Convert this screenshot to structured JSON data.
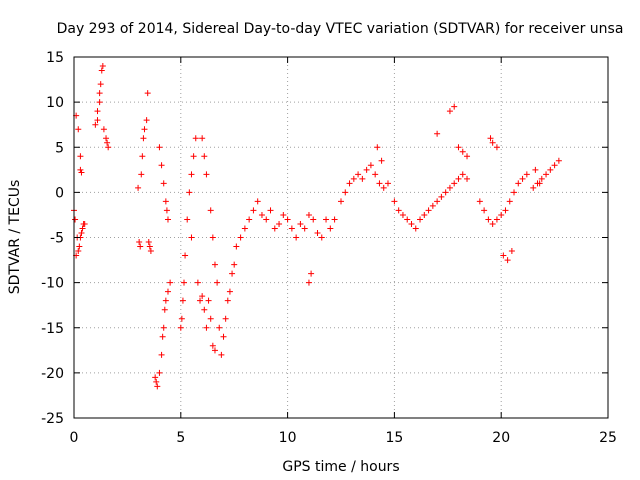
{
  "chart_data": {
    "type": "scatter",
    "title": "Day 293 of 2014, Sidereal Day-to-day VTEC variation (SDTVAR) for receiver unsa",
    "xlabel": "GPS time / hours",
    "ylabel": "SDTVAR / TECUs",
    "xlim": [
      0,
      25
    ],
    "ylim": [
      -25,
      15
    ],
    "xticks": [
      0,
      5,
      10,
      15,
      20,
      25
    ],
    "yticks": [
      -25,
      -20,
      -15,
      -10,
      -5,
      0,
      5,
      10,
      15
    ],
    "grid": true,
    "marker": "+",
    "color": "#ff0000",
    "series": [
      {
        "name": "SDTVAR",
        "x": [
          0.0,
          0.1,
          0.2,
          0.3,
          0.15,
          0.25,
          0.05,
          0.1,
          0.2,
          0.3,
          0.35,
          0.4,
          0.45,
          0.5,
          0.3,
          0.35,
          1.0,
          1.1,
          1.2,
          1.25,
          1.3,
          1.35,
          1.1,
          1.2,
          1.4,
          1.5,
          1.55,
          1.6,
          3.0,
          3.05,
          3.1,
          3.15,
          3.2,
          3.25,
          3.3,
          3.4,
          3.45,
          3.5,
          3.55,
          3.6,
          3.8,
          3.85,
          3.9,
          4.0,
          4.1,
          4.2,
          4.3,
          4.35,
          4.4,
          4.0,
          4.1,
          4.15,
          4.2,
          4.25,
          4.3,
          4.4,
          4.5,
          5.0,
          5.05,
          5.1,
          5.15,
          5.2,
          5.3,
          5.4,
          5.5,
          5.6,
          5.7,
          5.5,
          5.8,
          5.9,
          6.0,
          6.1,
          6.2,
          6.3,
          6.4,
          6.5,
          6.6,
          6.0,
          6.1,
          6.2,
          6.4,
          6.5,
          6.6,
          6.7,
          6.8,
          6.9,
          7.0,
          7.1,
          7.2,
          7.3,
          7.4,
          7.5,
          7.6,
          7.8,
          8.0,
          8.2,
          8.4,
          8.6,
          8.8,
          9.0,
          9.2,
          9.4,
          9.6,
          9.8,
          10.0,
          10.2,
          10.4,
          10.6,
          10.8,
          11.0,
          11.2,
          11.4,
          11.6,
          11.8,
          12.0,
          12.2,
          11.0,
          11.1,
          12.5,
          12.7,
          12.9,
          13.1,
          13.3,
          13.5,
          13.7,
          13.9,
          14.1,
          14.3,
          14.5,
          14.7,
          14.2,
          14.4,
          15.0,
          15.2,
          15.4,
          15.6,
          15.8,
          16.0,
          16.2,
          16.4,
          16.6,
          16.8,
          17.0,
          17.2,
          17.4,
          17.6,
          17.8,
          18.0,
          18.2,
          18.4,
          17.0,
          17.6,
          17.8,
          18.0,
          18.2,
          18.4,
          19.0,
          19.2,
          19.4,
          19.6,
          19.8,
          20.0,
          20.2,
          20.4,
          20.6,
          20.8,
          21.0,
          21.2,
          19.5,
          19.6,
          19.8,
          20.1,
          20.3,
          20.5,
          21.5,
          21.7,
          21.9,
          22.1,
          22.3,
          22.5,
          22.7,
          21.6,
          21.8
        ],
        "y": [
          -2,
          8.5,
          7,
          4,
          -5,
          -6,
          -3,
          -7,
          -6.5,
          -5,
          -4.5,
          -4,
          -3.5,
          -3.5,
          2.5,
          2.2,
          7.5,
          8,
          10,
          12,
          13.5,
          14,
          9,
          11,
          7,
          6,
          5.5,
          5,
          0.5,
          -5.5,
          -6,
          2,
          4,
          6,
          7,
          8,
          11,
          -5.5,
          -6,
          -6.5,
          -20.5,
          -21,
          -21.5,
          5,
          3,
          1,
          -1,
          -2,
          -3,
          -20,
          -18,
          -16,
          -15,
          -13,
          -12,
          -11,
          -10,
          -15,
          -14,
          -12,
          -10,
          -7,
          -3,
          0,
          2,
          4,
          6,
          -5,
          -10,
          -12,
          -11.5,
          -13,
          -15,
          -12,
          -14,
          -17,
          -17.5,
          6,
          4,
          2,
          -2,
          -5,
          -8,
          -10,
          -15,
          -18,
          -16,
          -14,
          -12,
          -11,
          -9,
          -8,
          -6,
          -5,
          -4,
          -3,
          -2,
          -1,
          -2.5,
          -3,
          -2,
          -4,
          -3.5,
          -2.5,
          -3,
          -4,
          -5,
          -3.5,
          -4,
          -2.5,
          -3,
          -4.5,
          -5,
          -3,
          -4,
          -3,
          -10,
          -9,
          -1,
          0,
          1,
          1.5,
          2,
          1.5,
          2.5,
          3,
          2,
          1,
          0.5,
          1,
          5,
          3.5,
          -1,
          -2,
          -2.5,
          -3,
          -3.5,
          -4,
          -3,
          -2.5,
          -2,
          -1.5,
          -1,
          -0.5,
          0,
          0.5,
          1,
          1.5,
          2,
          1.5,
          6.5,
          9,
          9.5,
          5,
          4.5,
          4,
          -1,
          -2,
          -3,
          -3.5,
          -3,
          -2.5,
          -2,
          -1,
          0,
          1,
          1.5,
          2,
          6,
          5.5,
          5,
          -7,
          -7.5,
          -6.5,
          0.5,
          1,
          1.5,
          2,
          2.5,
          3,
          3.5,
          2.5,
          1
        ]
      }
    ]
  }
}
